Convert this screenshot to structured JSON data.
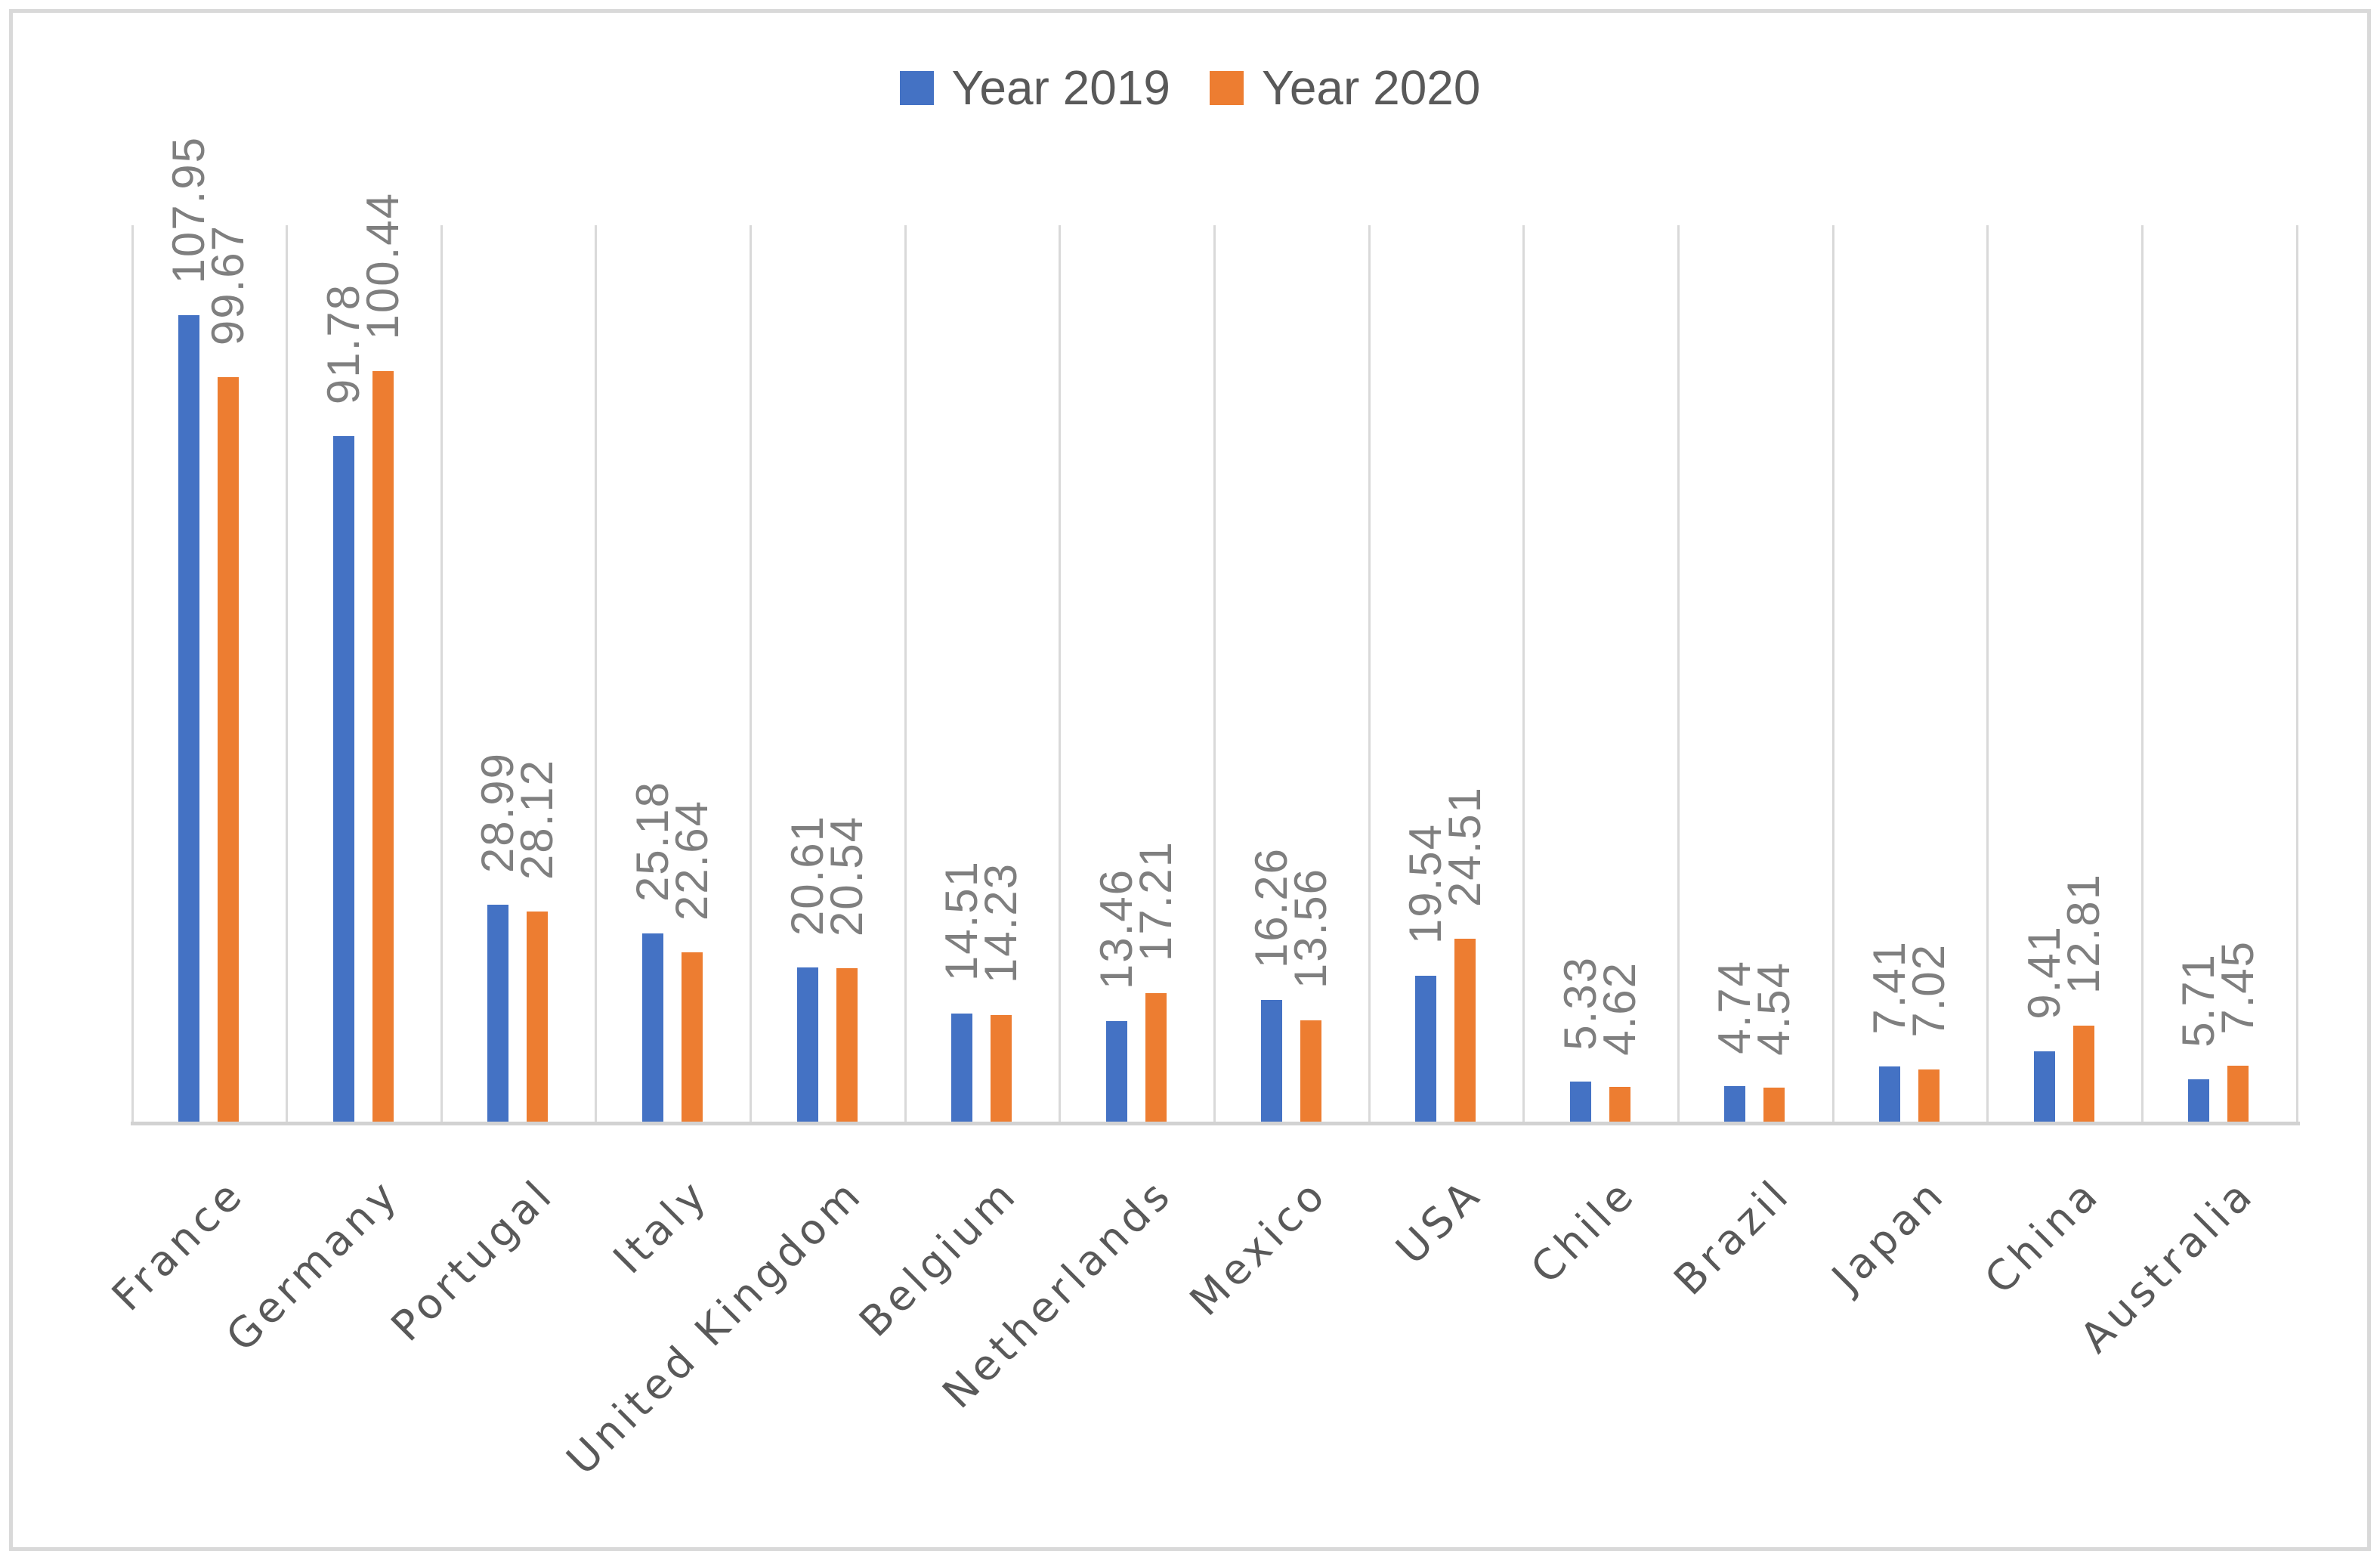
{
  "chart_data": {
    "type": "bar",
    "title": "",
    "categories": [
      "France",
      "Germany",
      "Portugal",
      "Italy",
      "United Kingdom",
      "Belgium",
      "Netherlands",
      "Mexico",
      "USA",
      "Chile",
      "Brazil",
      "Japan",
      "China",
      "Australia"
    ],
    "series": [
      {
        "name": "Year 2019",
        "color": "#4472C4",
        "values": [
          107.95,
          91.78,
          28.99,
          25.18,
          20.61,
          14.51,
          13.46,
          16.26,
          19.54,
          5.33,
          4.74,
          7.41,
          9.41,
          5.71
        ]
      },
      {
        "name": "Year 2020",
        "color": "#ED7D31",
        "values": [
          99.67,
          100.44,
          28.12,
          22.64,
          20.54,
          14.23,
          17.21,
          13.56,
          24.51,
          4.62,
          4.54,
          7.02,
          12.81,
          7.45
        ]
      }
    ],
    "ylim": [
      0,
      120
    ],
    "y_axis_labels_visible": false,
    "grid": "vertical-category-separators-only",
    "legend_position": "top-center",
    "value_labels": "above-bars-rotated-90-reading-bottom-to-top",
    "category_label_rotation": -45
  },
  "colors": {
    "series_2019": "#4472C4",
    "series_2020": "#ED7D31",
    "value_label_text": "#7F7F7F",
    "category_label_text": "#595959",
    "legend_text": "#595959",
    "gridline": "#D9D9D9",
    "axis_line": "#D2D2D2",
    "chart_border": "#D9D9D9",
    "background": "#FFFFFF"
  }
}
